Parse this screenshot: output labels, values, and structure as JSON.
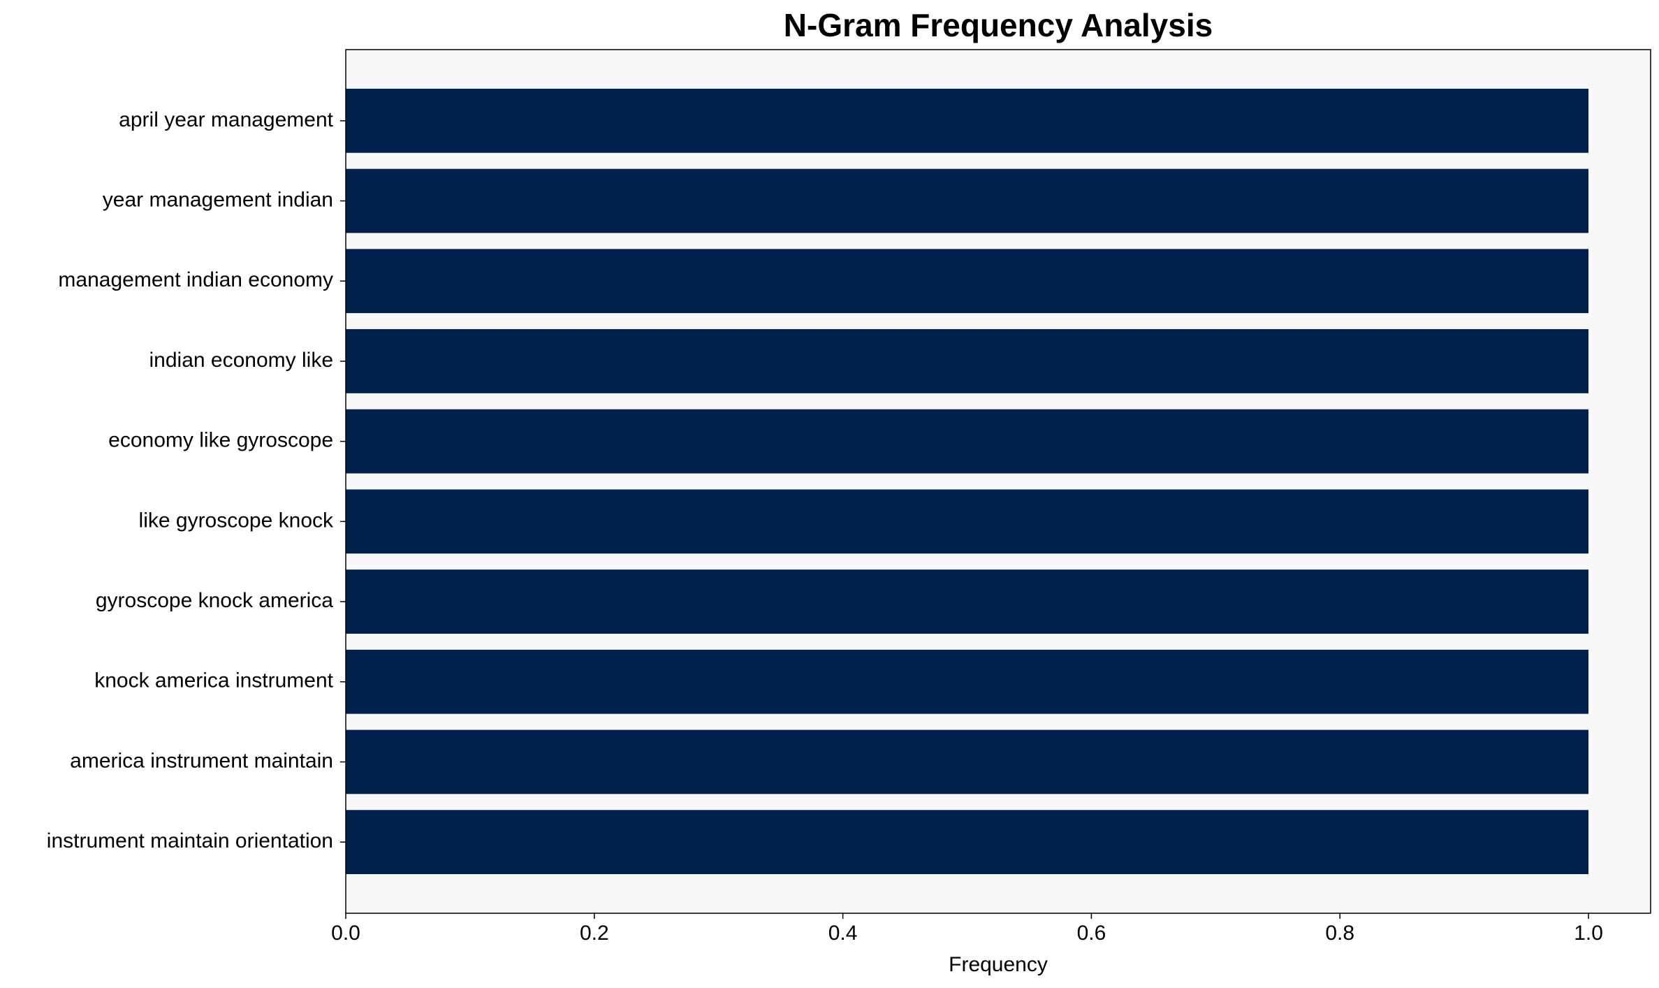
{
  "chart_data": {
    "type": "bar",
    "orientation": "horizontal",
    "title": "N-Gram Frequency Analysis",
    "xlabel": "Frequency",
    "categories": [
      "april year management",
      "year management indian",
      "management indian economy",
      "indian economy like",
      "economy like gyroscope",
      "like gyroscope knock",
      "gyroscope knock america",
      "knock america instrument",
      "america instrument maintain",
      "instrument maintain orientation"
    ],
    "values": [
      1,
      1,
      1,
      1,
      1,
      1,
      1,
      1,
      1,
      1
    ],
    "color": "#00204e",
    "xlim": [
      0,
      1.05
    ],
    "xticks": [
      {
        "value": 0,
        "label": "0.0"
      },
      0.2,
      0.4,
      0.6,
      0.8,
      {
        "value": 1,
        "label": "1.0"
      }
    ],
    "grid": false
  }
}
